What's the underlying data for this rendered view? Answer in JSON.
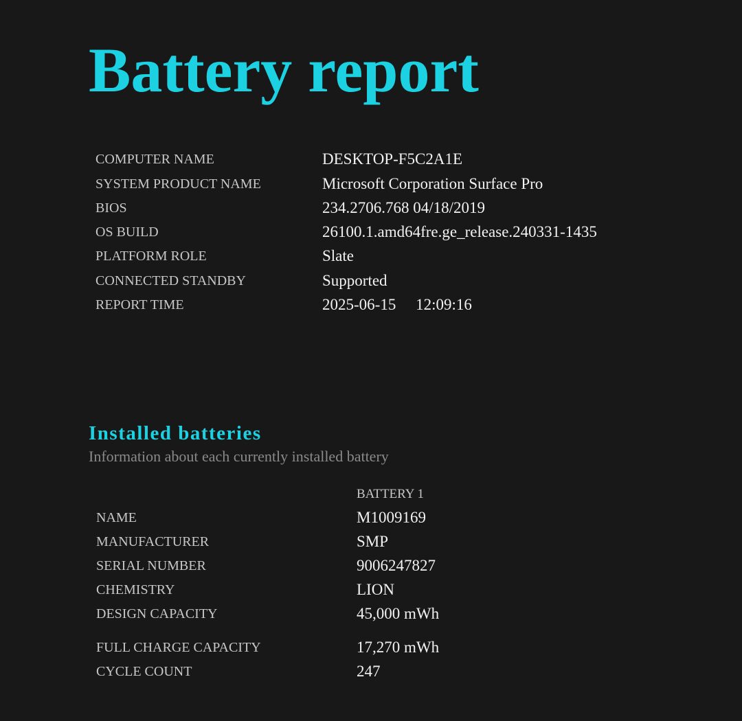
{
  "title": "Battery report",
  "system_info": [
    {
      "label": "COMPUTER NAME",
      "value": "DESKTOP-F5C2A1E"
    },
    {
      "label": "SYSTEM PRODUCT NAME",
      "value": "Microsoft Corporation Surface Pro"
    },
    {
      "label": "BIOS",
      "value": "234.2706.768 04/18/2019"
    },
    {
      "label": "OS BUILD",
      "value": "26100.1.amd64fre.ge_release.240331-1435"
    },
    {
      "label": "PLATFORM ROLE",
      "value": "Slate"
    },
    {
      "label": "CONNECTED STANDBY",
      "value": "Supported"
    },
    {
      "label": "REPORT TIME",
      "value": "2025-06-15     12:09:16"
    }
  ],
  "installed_batteries": {
    "heading": "Installed batteries",
    "subtitle": "Information about each currently installed battery",
    "column_header": "BATTERY 1",
    "rows": [
      {
        "label": "NAME",
        "value": "M1009169"
      },
      {
        "label": "MANUFACTURER",
        "value": "SMP"
      },
      {
        "label": "SERIAL NUMBER",
        "value": "9006247827"
      },
      {
        "label": "CHEMISTRY",
        "value": "LION"
      },
      {
        "label": "DESIGN CAPACITY",
        "value": "45,000 mWh"
      },
      {
        "label": "FULL CHARGE CAPACITY",
        "value": "17,270 mWh"
      },
      {
        "label": "CYCLE COUNT",
        "value": "247"
      }
    ]
  }
}
